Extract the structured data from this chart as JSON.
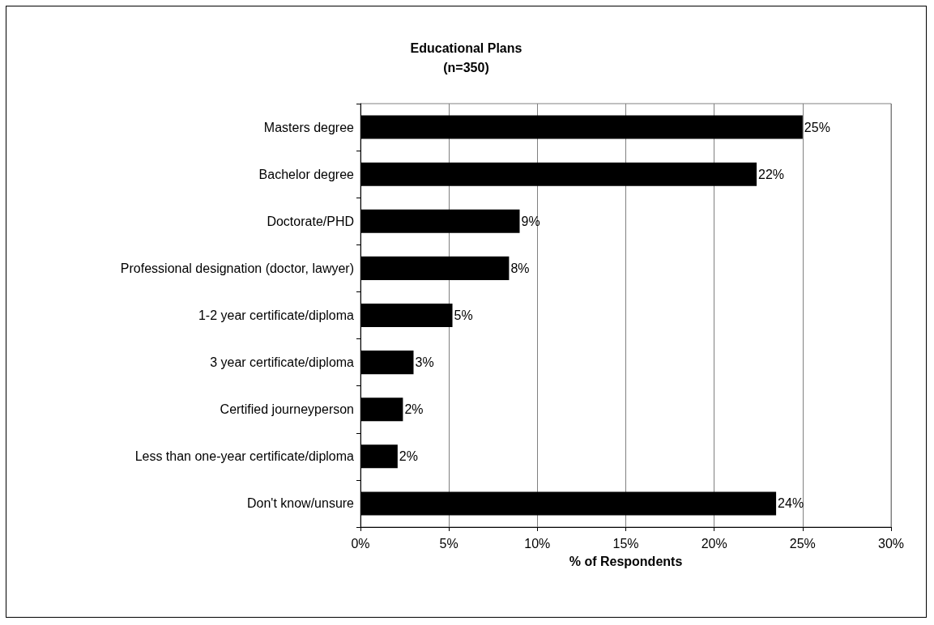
{
  "chart_data": {
    "type": "bar",
    "orientation": "horizontal",
    "title": "Educational Plans",
    "subtitle": "(n=350)",
    "xlabel": "% of Respondents",
    "categories": [
      "Masters degree",
      "Bachelor degree",
      "Doctorate/PHD",
      "Professional designation (doctor, lawyer)",
      "1-2 year certificate/diploma",
      "3 year certificate/diploma",
      "Certified journeyperson",
      "Less than one-year certificate/diploma",
      "Don't know/unsure"
    ],
    "values": [
      25,
      22.4,
      9,
      8.4,
      5.2,
      3,
      2.4,
      2.1,
      23.5
    ],
    "value_labels": [
      "25%",
      "22%",
      "9%",
      "8%",
      "5%",
      "3%",
      "2%",
      "2%",
      "24%"
    ],
    "color": "#000000",
    "xlim": [
      0,
      30
    ],
    "xticks": [
      {
        "value": 0,
        "label": "0%"
      },
      {
        "value": 5,
        "label": "5%"
      },
      {
        "value": 10,
        "label": "10%"
      },
      {
        "value": 15,
        "label": "15%"
      },
      {
        "value": 20,
        "label": "20%"
      },
      {
        "value": 25,
        "label": "25%"
      },
      {
        "value": 30,
        "label": "30%"
      }
    ],
    "grid": "x"
  }
}
